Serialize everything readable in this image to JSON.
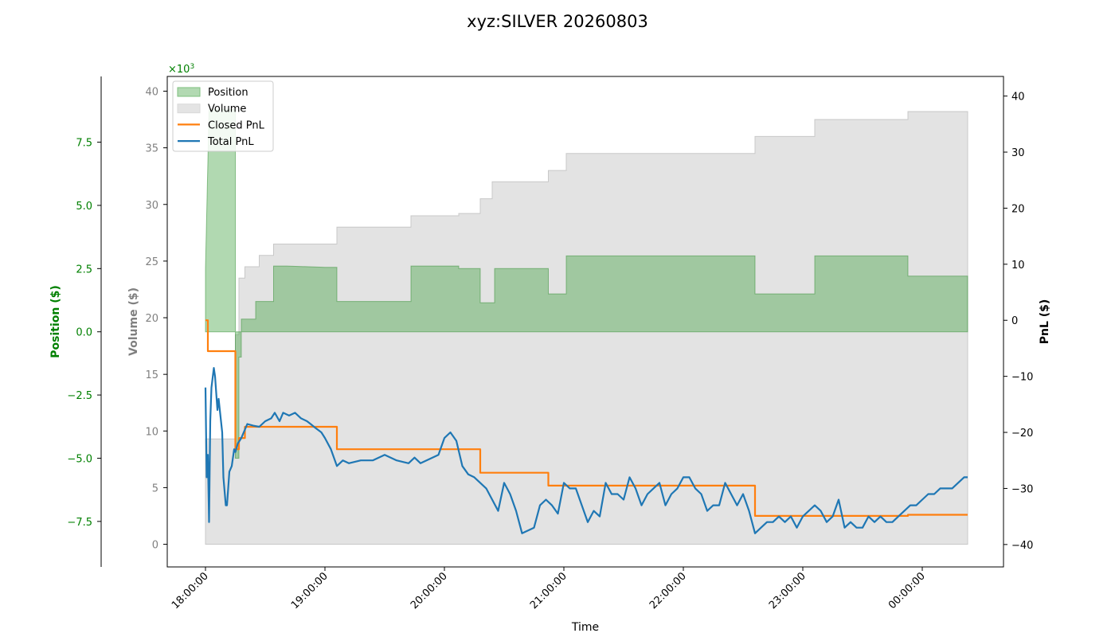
{
  "chart_data": {
    "type": "line",
    "title": "xyz:SILVER 20260803",
    "xlabel": "Time",
    "x_ticks": [
      "18:00:00",
      "19:00:00",
      "20:00:00",
      "21:00:00",
      "22:00:00",
      "23:00:00",
      "00:00:00"
    ],
    "x_range_hours": [
      17.68,
      24.68
    ],
    "axes": {
      "position": {
        "label": "Position ($)",
        "color": "#008000",
        "range": [
          -9.3,
          10.1
        ],
        "multiplier": "×10",
        "multiplier_exp": "3",
        "ticks": [
          "7.5",
          "5.0",
          "2.5",
          "0.0",
          "−2.5",
          "−5.0",
          "−7.5"
        ],
        "tick_values": [
          7.5,
          5.0,
          2.5,
          0.0,
          -2.5,
          -5.0,
          -7.5
        ]
      },
      "volume": {
        "label": "Volume ($)",
        "color": "#808080",
        "range": [
          -2.0,
          41.3
        ],
        "ticks": [
          "40",
          "35",
          "30",
          "25",
          "20",
          "15",
          "10",
          "5",
          "0"
        ],
        "tick_values": [
          40,
          35,
          30,
          25,
          20,
          15,
          10,
          5,
          0
        ]
      },
      "pnl": {
        "label": "PnL ($)",
        "color": "#000000",
        "range": [
          -44,
          43.5
        ],
        "ticks": [
          "40",
          "30",
          "20",
          "10",
          "0",
          "−10",
          "−20",
          "−30",
          "−40"
        ],
        "tick_values": [
          40,
          30,
          20,
          10,
          0,
          -10,
          -20,
          -30,
          -40
        ]
      }
    },
    "legend": {
      "placement": "top-left",
      "entries": [
        {
          "label": "Position",
          "kind": "fill",
          "color": "#7fc07f"
        },
        {
          "label": "Volume",
          "kind": "fill",
          "color": "#d9d9d9"
        },
        {
          "label": "Closed PnL",
          "kind": "line",
          "color": "#ff7f0e"
        },
        {
          "label": "Total PnL",
          "kind": "line",
          "color": "#1f77b4"
        }
      ]
    },
    "series": [
      {
        "name": "Position",
        "axis": "position",
        "color": "#2e8b2e",
        "points": [
          [
            18.0,
            0
          ],
          [
            18.0,
            2.5
          ],
          [
            18.03,
            8.8
          ],
          [
            18.07,
            8.8
          ],
          [
            18.07,
            8.8
          ],
          [
            18.25,
            8.8
          ],
          [
            18.25,
            -5.0
          ],
          [
            18.28,
            -5.0
          ],
          [
            18.28,
            -1.0
          ],
          [
            18.3,
            -1.0
          ],
          [
            18.3,
            0.5
          ],
          [
            18.42,
            0.5
          ],
          [
            18.42,
            1.2
          ],
          [
            18.57,
            1.2
          ],
          [
            18.57,
            2.6
          ],
          [
            18.68,
            2.6
          ],
          [
            18.68,
            2.6
          ],
          [
            19.0,
            2.55
          ],
          [
            19.1,
            2.55
          ],
          [
            19.1,
            1.2
          ],
          [
            19.72,
            1.2
          ],
          [
            19.72,
            2.6
          ],
          [
            20.12,
            2.6
          ],
          [
            20.12,
            2.5
          ],
          [
            20.3,
            2.5
          ],
          [
            20.3,
            1.15
          ],
          [
            20.42,
            1.15
          ],
          [
            20.42,
            2.5
          ],
          [
            20.87,
            2.5
          ],
          [
            20.87,
            1.5
          ],
          [
            21.02,
            1.5
          ],
          [
            21.02,
            3.0
          ],
          [
            22.6,
            3.0
          ],
          [
            22.6,
            1.5
          ],
          [
            23.1,
            1.5
          ],
          [
            23.1,
            3.0
          ],
          [
            23.88,
            3.0
          ],
          [
            23.88,
            2.2
          ],
          [
            24.38,
            2.2
          ],
          [
            24.38,
            0
          ]
        ]
      },
      {
        "name": "Volume",
        "axis": "volume",
        "color": "#c8c8c8",
        "points": [
          [
            18.0,
            0
          ],
          [
            18.0,
            9.3
          ],
          [
            18.25,
            9.3
          ],
          [
            18.25,
            18.5
          ],
          [
            18.28,
            18.5
          ],
          [
            18.28,
            23.5
          ],
          [
            18.33,
            23.5
          ],
          [
            18.33,
            24.5
          ],
          [
            18.45,
            24.5
          ],
          [
            18.45,
            25.5
          ],
          [
            18.57,
            25.5
          ],
          [
            18.57,
            26.5
          ],
          [
            19.1,
            26.5
          ],
          [
            19.1,
            28.0
          ],
          [
            19.72,
            28.0
          ],
          [
            19.72,
            29.0
          ],
          [
            20.12,
            29.0
          ],
          [
            20.12,
            29.2
          ],
          [
            20.3,
            29.2
          ],
          [
            20.3,
            30.5
          ],
          [
            20.4,
            30.5
          ],
          [
            20.4,
            32.0
          ],
          [
            20.87,
            32.0
          ],
          [
            20.87,
            33.0
          ],
          [
            21.02,
            33.0
          ],
          [
            21.02,
            34.5
          ],
          [
            22.6,
            34.5
          ],
          [
            22.6,
            36.0
          ],
          [
            23.1,
            36.0
          ],
          [
            23.1,
            37.5
          ],
          [
            23.88,
            37.5
          ],
          [
            23.88,
            38.2
          ],
          [
            24.38,
            38.2
          ],
          [
            24.38,
            0
          ]
        ]
      },
      {
        "name": "Closed PnL",
        "axis": "pnl",
        "color": "#ff7f0e",
        "points": [
          [
            18.0,
            0
          ],
          [
            18.02,
            0
          ],
          [
            18.02,
            -5.5
          ],
          [
            18.25,
            -5.5
          ],
          [
            18.25,
            -23.0
          ],
          [
            18.28,
            -23.0
          ],
          [
            18.28,
            -21.0
          ],
          [
            18.33,
            -21.0
          ],
          [
            18.33,
            -19.0
          ],
          [
            19.1,
            -19.0
          ],
          [
            19.1,
            -23.0
          ],
          [
            20.3,
            -23.0
          ],
          [
            20.3,
            -27.2
          ],
          [
            20.87,
            -27.2
          ],
          [
            20.87,
            -29.5
          ],
          [
            22.6,
            -29.5
          ],
          [
            22.6,
            -34.9
          ],
          [
            23.88,
            -34.9
          ],
          [
            23.88,
            -34.7
          ],
          [
            24.38,
            -34.7
          ]
        ]
      },
      {
        "name": "Total PnL",
        "axis": "pnl",
        "color": "#1f77b4",
        "points": [
          [
            18.0,
            -12
          ],
          [
            18.01,
            -28
          ],
          [
            18.02,
            -24
          ],
          [
            18.03,
            -36
          ],
          [
            18.04,
            -18
          ],
          [
            18.05,
            -12
          ],
          [
            18.07,
            -8.5
          ],
          [
            18.08,
            -10
          ],
          [
            18.1,
            -16
          ],
          [
            18.11,
            -14
          ],
          [
            18.12,
            -16
          ],
          [
            18.14,
            -20
          ],
          [
            18.15,
            -28
          ],
          [
            18.17,
            -33
          ],
          [
            18.18,
            -33
          ],
          [
            18.2,
            -27
          ],
          [
            18.22,
            -26
          ],
          [
            18.24,
            -23
          ],
          [
            18.25,
            -23.5
          ],
          [
            18.27,
            -22
          ],
          [
            18.3,
            -21
          ],
          [
            18.35,
            -18.5
          ],
          [
            18.4,
            -18.8
          ],
          [
            18.45,
            -19
          ],
          [
            18.5,
            -18
          ],
          [
            18.55,
            -17.5
          ],
          [
            18.58,
            -16.5
          ],
          [
            18.62,
            -18
          ],
          [
            18.65,
            -16.5
          ],
          [
            18.7,
            -17
          ],
          [
            18.75,
            -16.5
          ],
          [
            18.8,
            -17.5
          ],
          [
            18.85,
            -18
          ],
          [
            18.88,
            -18.5
          ],
          [
            18.92,
            -19.2
          ],
          [
            18.97,
            -20
          ],
          [
            19.0,
            -21
          ],
          [
            19.05,
            -23
          ],
          [
            19.1,
            -26
          ],
          [
            19.15,
            -25
          ],
          [
            19.2,
            -25.5
          ],
          [
            19.3,
            -25
          ],
          [
            19.4,
            -25
          ],
          [
            19.5,
            -24
          ],
          [
            19.6,
            -25
          ],
          [
            19.7,
            -25.5
          ],
          [
            19.75,
            -24.5
          ],
          [
            19.8,
            -25.5
          ],
          [
            19.9,
            -24.5
          ],
          [
            19.95,
            -24
          ],
          [
            20.0,
            -21
          ],
          [
            20.05,
            -20
          ],
          [
            20.1,
            -21.5
          ],
          [
            20.15,
            -26
          ],
          [
            20.2,
            -27.5
          ],
          [
            20.25,
            -28
          ],
          [
            20.3,
            -29
          ],
          [
            20.35,
            -30
          ],
          [
            20.4,
            -32
          ],
          [
            20.45,
            -34
          ],
          [
            20.5,
            -29
          ],
          [
            20.55,
            -31
          ],
          [
            20.6,
            -34
          ],
          [
            20.65,
            -38
          ],
          [
            20.7,
            -37.5
          ],
          [
            20.75,
            -37
          ],
          [
            20.8,
            -33
          ],
          [
            20.85,
            -32
          ],
          [
            20.9,
            -33
          ],
          [
            20.95,
            -34.5
          ],
          [
            21.0,
            -29
          ],
          [
            21.05,
            -30
          ],
          [
            21.1,
            -30
          ],
          [
            21.15,
            -33
          ],
          [
            21.2,
            -36
          ],
          [
            21.25,
            -34
          ],
          [
            21.3,
            -35
          ],
          [
            21.35,
            -29
          ],
          [
            21.4,
            -31
          ],
          [
            21.45,
            -31
          ],
          [
            21.5,
            -32
          ],
          [
            21.55,
            -28
          ],
          [
            21.6,
            -30
          ],
          [
            21.65,
            -33
          ],
          [
            21.7,
            -31
          ],
          [
            21.75,
            -30
          ],
          [
            21.8,
            -29
          ],
          [
            21.85,
            -33
          ],
          [
            21.9,
            -31
          ],
          [
            21.95,
            -30
          ],
          [
            22.0,
            -28
          ],
          [
            22.05,
            -28
          ],
          [
            22.1,
            -30
          ],
          [
            22.15,
            -31
          ],
          [
            22.2,
            -34
          ],
          [
            22.25,
            -33
          ],
          [
            22.3,
            -33
          ],
          [
            22.35,
            -29
          ],
          [
            22.4,
            -31
          ],
          [
            22.45,
            -33
          ],
          [
            22.5,
            -31
          ],
          [
            22.55,
            -34
          ],
          [
            22.6,
            -38
          ],
          [
            22.65,
            -37
          ],
          [
            22.7,
            -36
          ],
          [
            22.75,
            -36
          ],
          [
            22.8,
            -35
          ],
          [
            22.85,
            -36
          ],
          [
            22.9,
            -35
          ],
          [
            22.95,
            -37
          ],
          [
            23.0,
            -35
          ],
          [
            23.05,
            -34
          ],
          [
            23.1,
            -33
          ],
          [
            23.15,
            -34
          ],
          [
            23.2,
            -36
          ],
          [
            23.25,
            -35
          ],
          [
            23.3,
            -32
          ],
          [
            23.35,
            -37
          ],
          [
            23.4,
            -36
          ],
          [
            23.45,
            -37
          ],
          [
            23.5,
            -37
          ],
          [
            23.55,
            -35
          ],
          [
            23.6,
            -36
          ],
          [
            23.65,
            -35
          ],
          [
            23.7,
            -36
          ],
          [
            23.75,
            -36
          ],
          [
            23.8,
            -35
          ],
          [
            23.85,
            -34
          ],
          [
            23.9,
            -33
          ],
          [
            23.95,
            -33
          ],
          [
            24.0,
            -32
          ],
          [
            24.05,
            -31
          ],
          [
            24.1,
            -31
          ],
          [
            24.15,
            -30
          ],
          [
            24.2,
            -30
          ],
          [
            24.25,
            -30
          ],
          [
            24.3,
            -29
          ],
          [
            24.35,
            -28
          ],
          [
            24.38,
            -28
          ]
        ]
      }
    ]
  }
}
